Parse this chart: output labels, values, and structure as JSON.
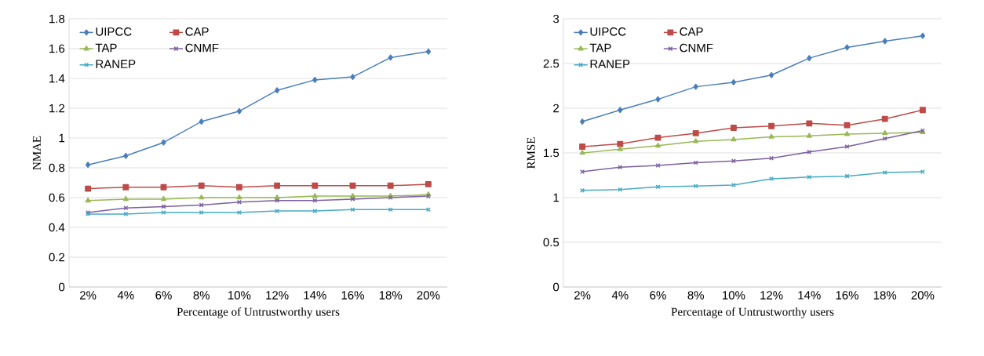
{
  "chart_data": [
    {
      "type": "line",
      "categories": [
        "2%",
        "4%",
        "6%",
        "8%",
        "10%",
        "12%",
        "14%",
        "16%",
        "18%",
        "20%"
      ],
      "xlabel": "Percentage of Untrustworthy users",
      "ylabel": "NMAE",
      "ylim": [
        0,
        1.8
      ],
      "yticks": [
        0,
        0.2,
        0.4,
        0.6,
        0.8,
        1,
        1.2,
        1.4,
        1.6,
        1.8
      ],
      "grid": "y",
      "legend": "top left",
      "series": [
        {
          "name": "UIPCC",
          "color": "#4a7ebb",
          "marker": "diamond",
          "values": [
            0.82,
            0.88,
            0.97,
            1.11,
            1.18,
            1.32,
            1.39,
            1.41,
            1.54,
            1.58
          ]
        },
        {
          "name": "CAP",
          "color": "#be4b48",
          "marker": "square",
          "values": [
            0.66,
            0.67,
            0.67,
            0.68,
            0.67,
            0.68,
            0.68,
            0.68,
            0.68,
            0.69
          ]
        },
        {
          "name": "TAP",
          "color": "#98b954",
          "marker": "triangle",
          "values": [
            0.58,
            0.59,
            0.59,
            0.6,
            0.6,
            0.6,
            0.61,
            0.61,
            0.61,
            0.62
          ]
        },
        {
          "name": "CNMF",
          "color": "#7d60a0",
          "marker": "cross",
          "values": [
            0.5,
            0.53,
            0.54,
            0.55,
            0.57,
            0.58,
            0.58,
            0.59,
            0.6,
            0.61
          ]
        },
        {
          "name": "RANEP",
          "color": "#46aac5",
          "marker": "cross",
          "values": [
            0.49,
            0.49,
            0.5,
            0.5,
            0.5,
            0.51,
            0.51,
            0.52,
            0.52,
            0.52
          ]
        }
      ]
    },
    {
      "type": "line",
      "categories": [
        "2%",
        "4%",
        "6%",
        "8%",
        "10%",
        "12%",
        "14%",
        "16%",
        "18%",
        "20%"
      ],
      "xlabel": "Percentage of Untrustworthy users",
      "ylabel": "RMSE",
      "ylim": [
        0,
        3
      ],
      "yticks": [
        0,
        0.5,
        1,
        1.5,
        2,
        2.5,
        3
      ],
      "grid": "y",
      "legend": "top left",
      "series": [
        {
          "name": "UIPCC",
          "color": "#4a7ebb",
          "marker": "diamond",
          "values": [
            1.85,
            1.98,
            2.1,
            2.24,
            2.29,
            2.37,
            2.56,
            2.68,
            2.75,
            2.81
          ]
        },
        {
          "name": "CAP",
          "color": "#be4b48",
          "marker": "square",
          "values": [
            1.57,
            1.6,
            1.67,
            1.72,
            1.78,
            1.8,
            1.83,
            1.81,
            1.88,
            1.98
          ]
        },
        {
          "name": "TAP",
          "color": "#98b954",
          "marker": "triangle",
          "values": [
            1.5,
            1.54,
            1.58,
            1.63,
            1.65,
            1.68,
            1.69,
            1.71,
            1.72,
            1.73
          ]
        },
        {
          "name": "CNMF",
          "color": "#7d60a0",
          "marker": "cross",
          "values": [
            1.29,
            1.34,
            1.36,
            1.39,
            1.41,
            1.44,
            1.51,
            1.57,
            1.66,
            1.75
          ]
        },
        {
          "name": "RANEP",
          "color": "#46aac5",
          "marker": "cross",
          "values": [
            1.08,
            1.09,
            1.12,
            1.13,
            1.14,
            1.21,
            1.23,
            1.24,
            1.28,
            1.29
          ]
        }
      ]
    }
  ]
}
